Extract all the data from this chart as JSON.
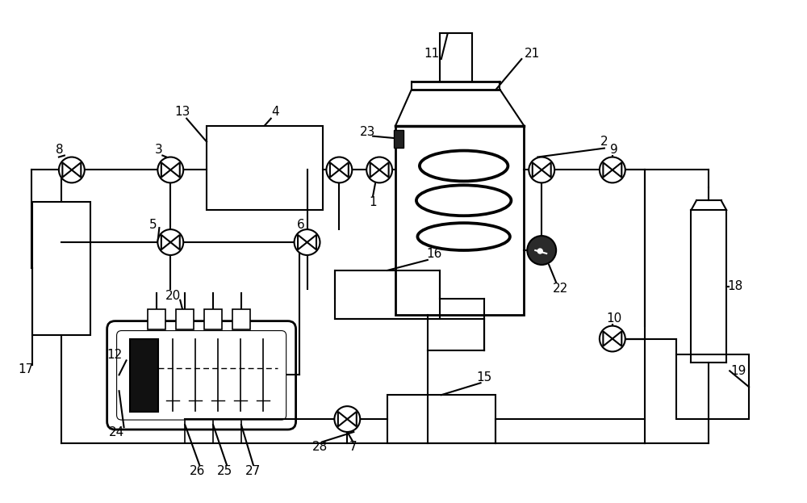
{
  "bg_color": "#ffffff",
  "line_color": "#000000",
  "figsize": [
    10.0,
    6.23
  ],
  "dpi": 100,
  "valve_r": 0.018,
  "lw": 1.5
}
